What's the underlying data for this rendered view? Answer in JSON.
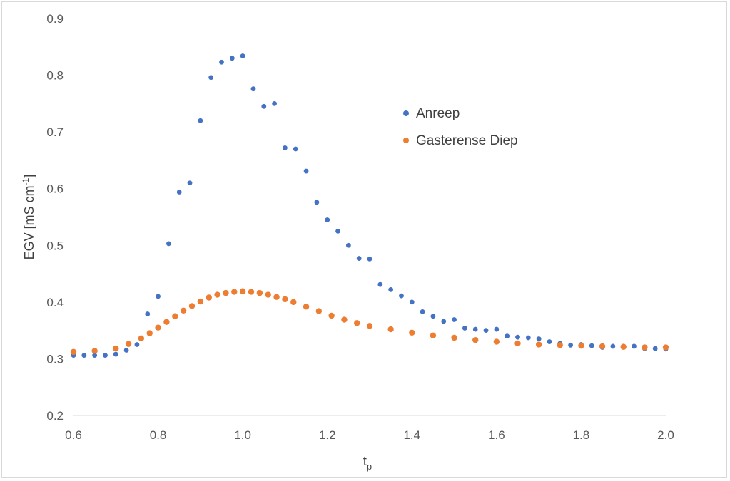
{
  "chart_data": {
    "type": "scatter",
    "xlim": [
      0.6,
      2.0
    ],
    "ylim": [
      0.2,
      0.9
    ],
    "x_ticks": [
      "0.6",
      "0.8",
      "1.0",
      "1.2",
      "1.4",
      "1.6",
      "1.8",
      "2.0"
    ],
    "y_ticks": [
      "0.2",
      "0.3",
      "0.4",
      "0.5",
      "0.6",
      "0.7",
      "0.8",
      "0.9"
    ],
    "xlabel": {
      "main": "t",
      "sub": "p"
    },
    "ylabel": {
      "main": "EGV [mS cm",
      "sup": "-1",
      "tail": "]"
    },
    "grid": false,
    "legend_position": "right",
    "series": [
      {
        "name": "Anreep",
        "color": "#4472c4",
        "x": [
          0.6,
          0.625,
          0.65,
          0.675,
          0.7,
          0.725,
          0.75,
          0.775,
          0.8,
          0.825,
          0.85,
          0.875,
          0.9,
          0.925,
          0.95,
          0.975,
          1.0,
          1.025,
          1.05,
          1.075,
          1.1,
          1.125,
          1.15,
          1.175,
          1.2,
          1.225,
          1.25,
          1.275,
          1.3,
          1.325,
          1.35,
          1.375,
          1.4,
          1.425,
          1.45,
          1.475,
          1.5,
          1.525,
          1.55,
          1.575,
          1.6,
          1.625,
          1.65,
          1.675,
          1.7,
          1.725,
          1.75,
          1.775,
          1.8,
          1.825,
          1.85,
          1.875,
          1.9,
          1.925,
          1.95,
          1.975,
          2.0
        ],
        "y": [
          0.306,
          0.306,
          0.306,
          0.306,
          0.308,
          0.315,
          0.325,
          0.379,
          0.41,
          0.503,
          0.594,
          0.61,
          0.72,
          0.796,
          0.823,
          0.83,
          0.834,
          0.776,
          0.745,
          0.75,
          0.672,
          0.67,
          0.631,
          0.576,
          0.545,
          0.525,
          0.5,
          0.477,
          0.476,
          0.431,
          0.422,
          0.411,
          0.4,
          0.383,
          0.375,
          0.366,
          0.369,
          0.354,
          0.352,
          0.35,
          0.352,
          0.34,
          0.338,
          0.337,
          0.335,
          0.33,
          0.327,
          0.324,
          0.325,
          0.323,
          0.32,
          0.322,
          0.322,
          0.322,
          0.318,
          0.318,
          0.317
        ]
      },
      {
        "name": "Gasterense Diep",
        "color": "#ed7d31",
        "x": [
          0.6,
          0.65,
          0.7,
          0.73,
          0.76,
          0.78,
          0.8,
          0.82,
          0.84,
          0.86,
          0.88,
          0.9,
          0.92,
          0.94,
          0.96,
          0.98,
          1.0,
          1.02,
          1.04,
          1.06,
          1.08,
          1.1,
          1.12,
          1.15,
          1.18,
          1.21,
          1.24,
          1.27,
          1.3,
          1.35,
          1.4,
          1.45,
          1.5,
          1.55,
          1.6,
          1.65,
          1.7,
          1.75,
          1.8,
          1.85,
          1.9,
          1.95,
          2.0
        ],
        "y": [
          0.312,
          0.314,
          0.318,
          0.326,
          0.336,
          0.345,
          0.355,
          0.365,
          0.375,
          0.385,
          0.393,
          0.401,
          0.408,
          0.413,
          0.416,
          0.418,
          0.419,
          0.418,
          0.416,
          0.413,
          0.409,
          0.405,
          0.4,
          0.392,
          0.384,
          0.376,
          0.369,
          0.363,
          0.358,
          0.352,
          0.346,
          0.341,
          0.337,
          0.333,
          0.33,
          0.327,
          0.325,
          0.324,
          0.323,
          0.322,
          0.321,
          0.32,
          0.32
        ]
      }
    ]
  }
}
